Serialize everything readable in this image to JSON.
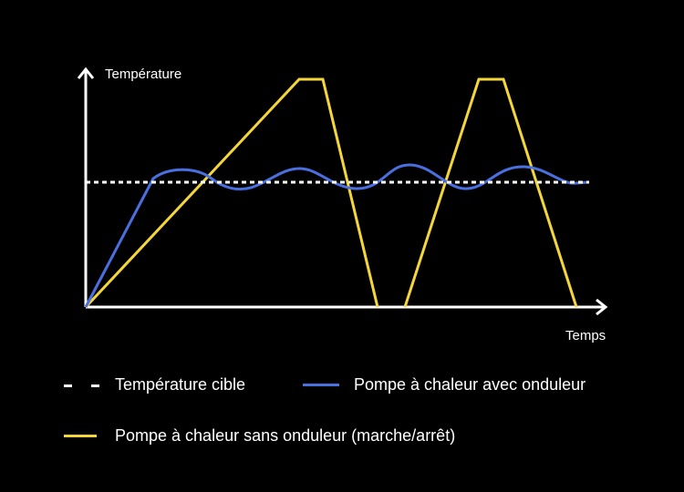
{
  "diagram": {
    "y_axis_label": "Température",
    "x_axis_label": "Temps",
    "colors": {
      "background": "#000000",
      "axes": "#ffffff",
      "target": "#ffffff",
      "inverter": "#4a6fe0",
      "onoff": "#f5d63a"
    },
    "legend": {
      "target": "Température cible",
      "inverter": "Pompe à chaleur avec onduleur",
      "onoff": "Pompe à chaleur sans onduleur (marche/arrêt)"
    }
  }
}
